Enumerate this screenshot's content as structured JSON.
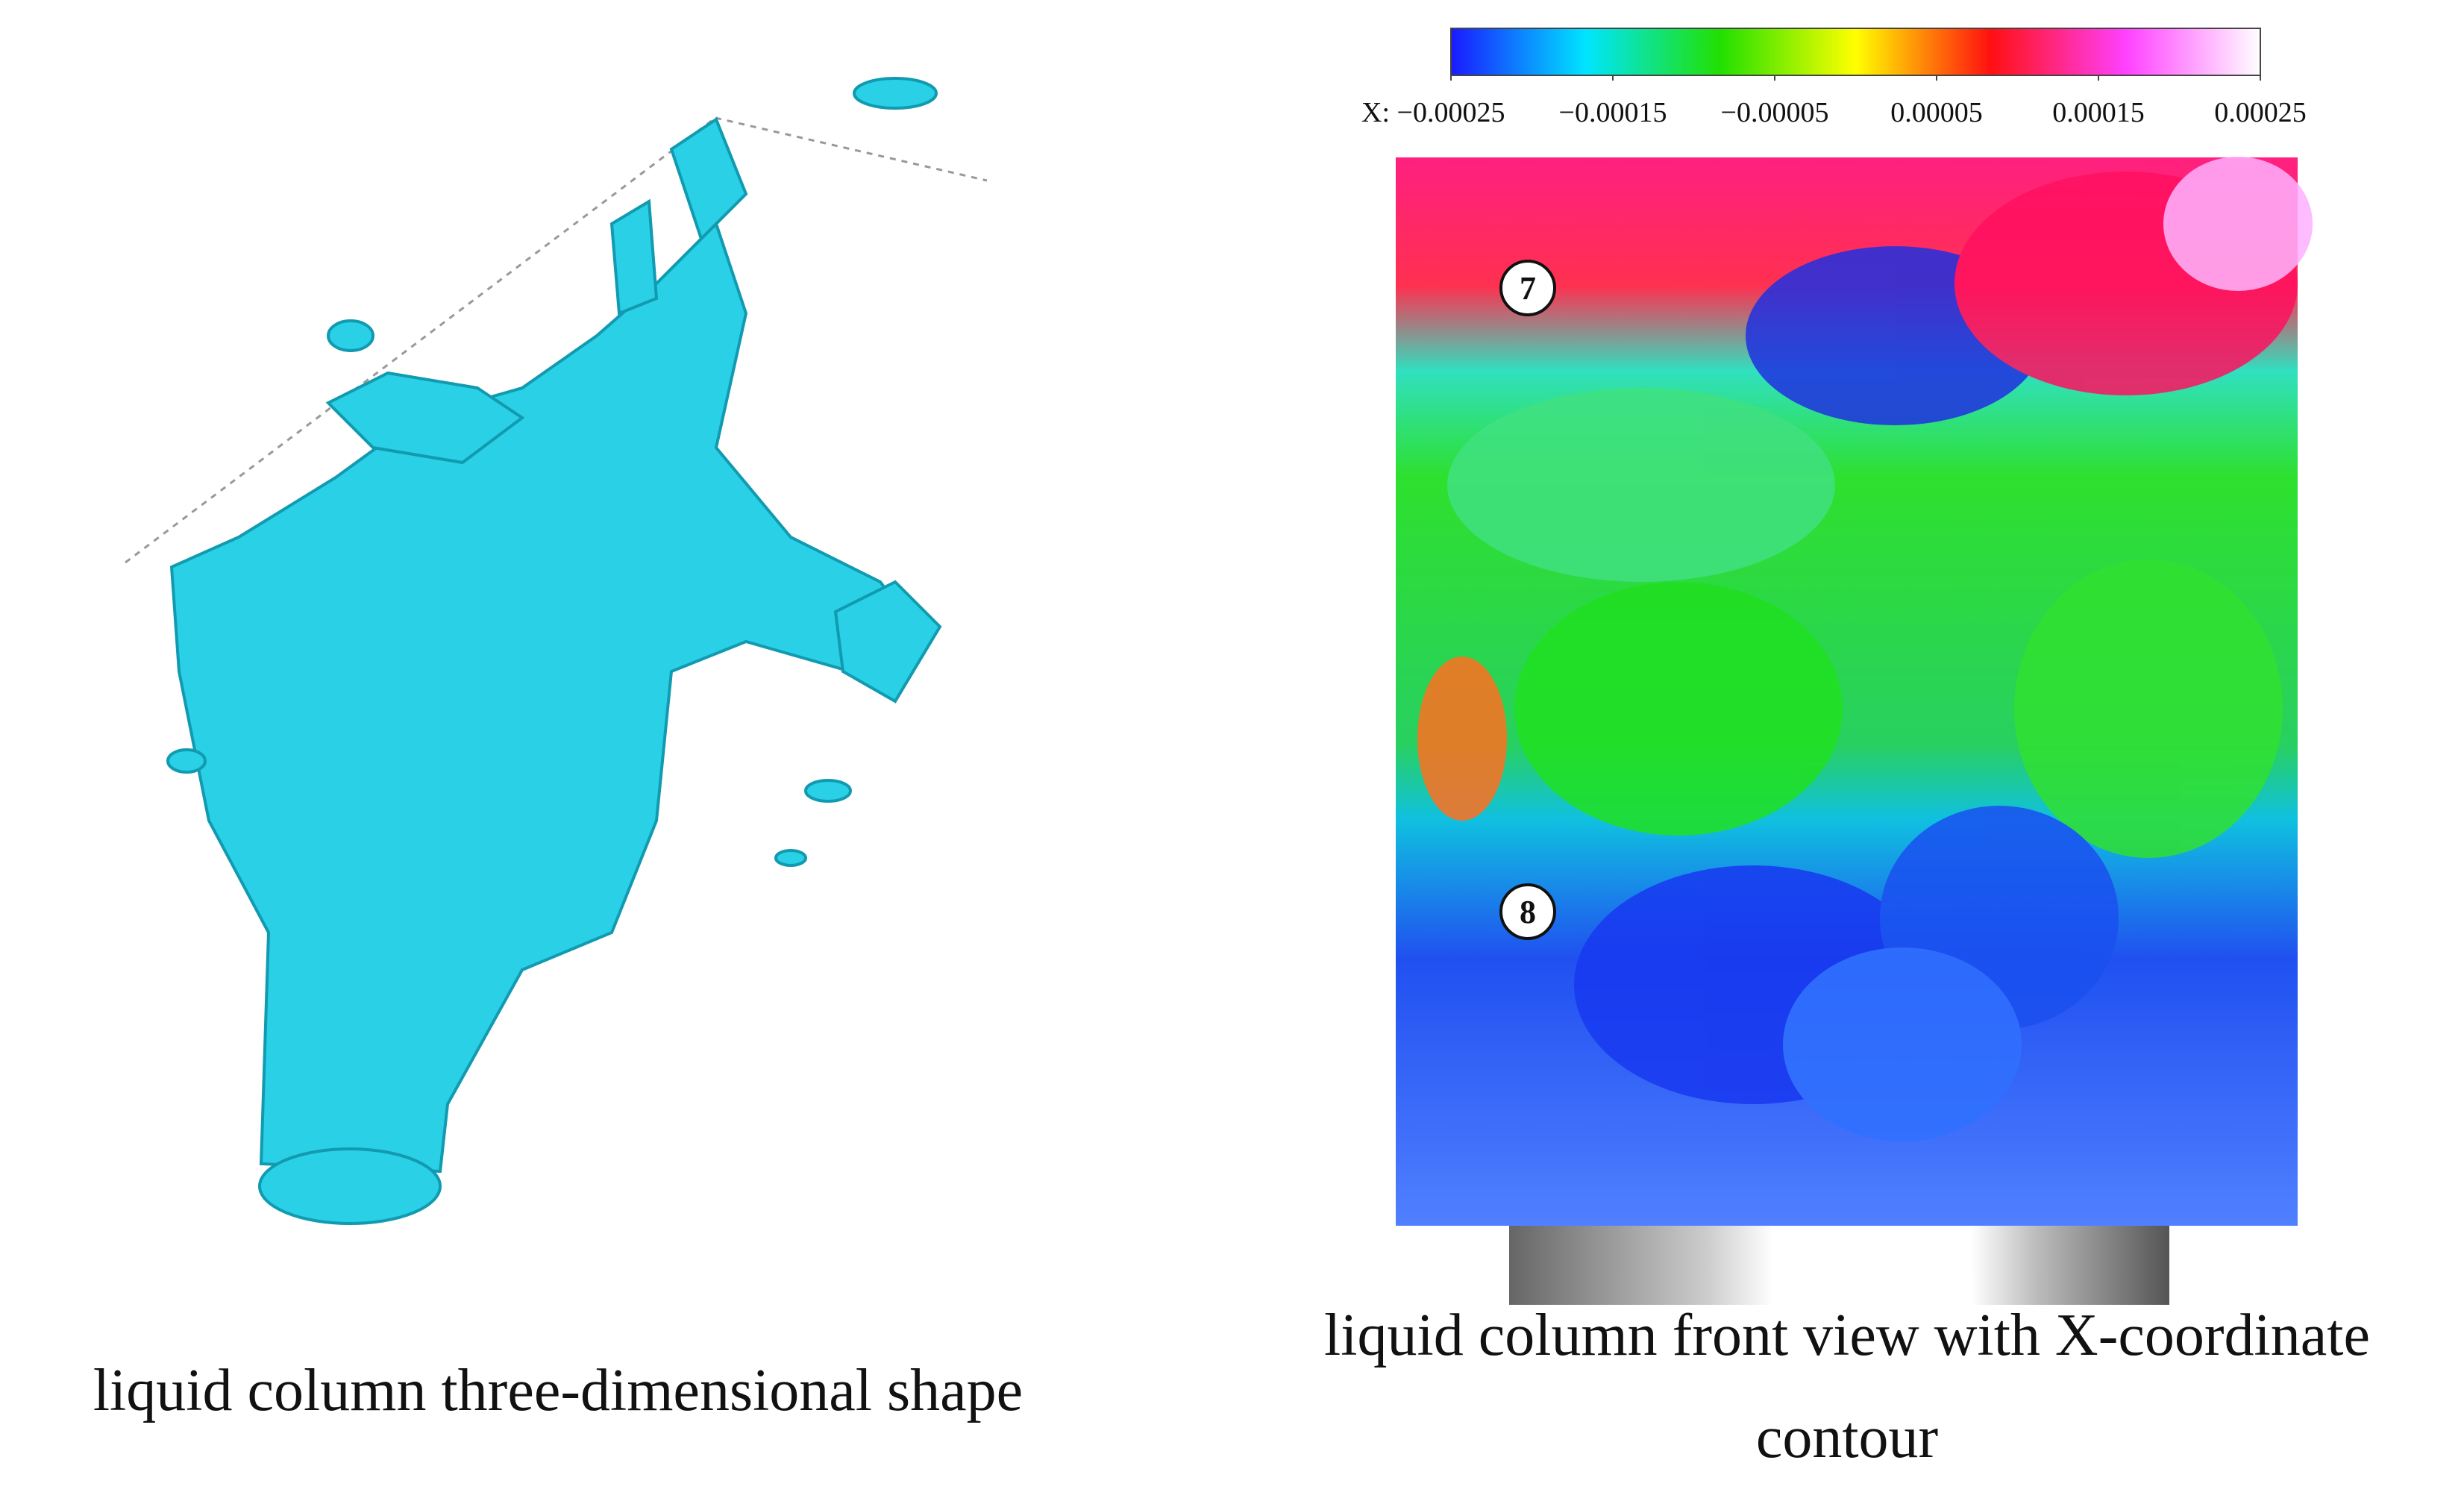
{
  "left_panel": {
    "caption": "liquid column three-dimensional shape"
  },
  "right_panel": {
    "colorbar": {
      "axis_label": "X:",
      "lim": [
        -0.00025,
        0.00025
      ],
      "ticks": [
        {
          "value": -0.00025,
          "label": "−0.00025"
        },
        {
          "value": -0.00015,
          "label": "−0.00015"
        },
        {
          "value": -5e-05,
          "label": "−0.00005"
        },
        5e-05,
        0.00015,
        0.00025
      ],
      "colors": [
        "#1a1aff",
        "#00e5ff",
        "#22e000",
        "#ffff00",
        "#ff1010",
        "#ff40ff",
        "#ffffff"
      ]
    },
    "markers": [
      "7",
      "8"
    ],
    "caption": [
      "liquid column front view with X-coordinate",
      "contour"
    ]
  }
}
